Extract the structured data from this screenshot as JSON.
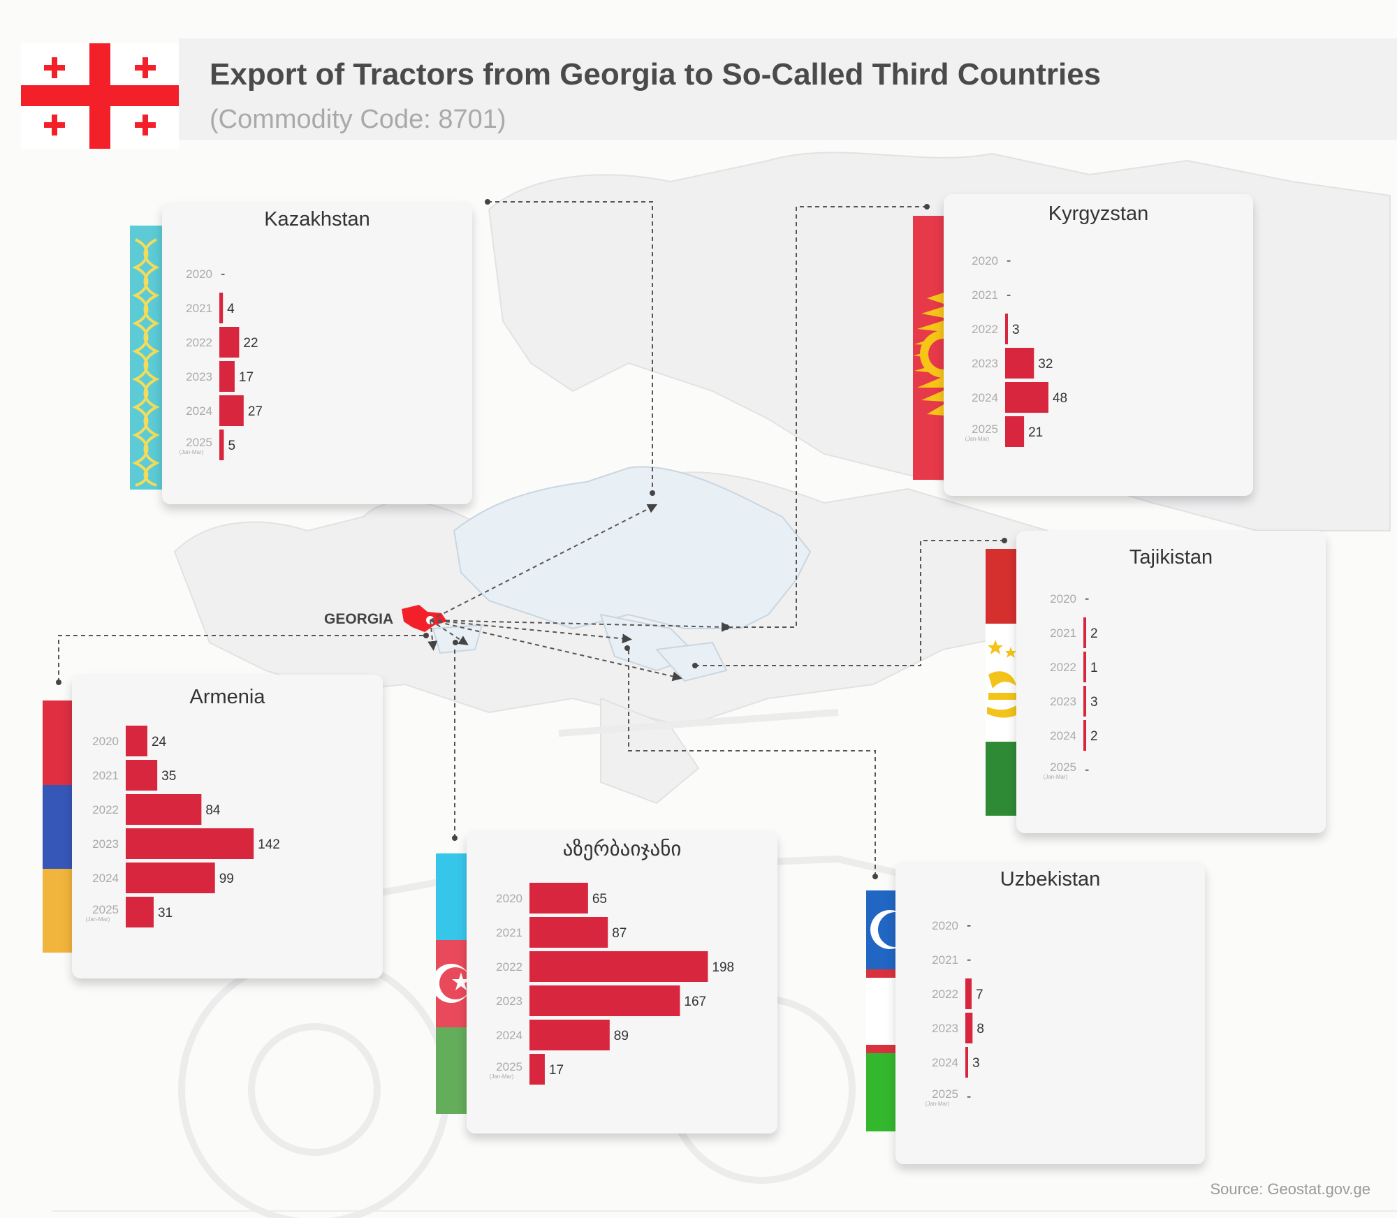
{
  "page": {
    "title": "Export of Tractors from Georgia to So-Called Third Countries",
    "subtitle": "(Commodity Code: 8701)",
    "source": "Source: Geostat.gov.ge",
    "origin_label": "GEORGIA"
  },
  "colors": {
    "bar": "#d7263d",
    "georgia_red": "#f3202a",
    "kazakh_blue": "#5ccbd6",
    "kazakh_gold": "#f3dc5a",
    "kyrgyz_red": "#e6394a",
    "kyrgyz_sun": "#f7c518",
    "tajik_red": "#d5302e",
    "tajik_green": "#2f8a35",
    "tajik_gold": "#f4c319",
    "armenia_red": "#df2f40",
    "armenia_blue": "#3757b8",
    "armenia_orange": "#f1b43c",
    "azer_blue": "#36c6ea",
    "azer_red": "#e94a5b",
    "azer_green": "#64ad5b",
    "uzbek_blue": "#2166c3",
    "uzbek_red": "#d9323e",
    "uzbek_green": "#33b72d"
  },
  "chart_data": [
    {
      "type": "bar",
      "title": "Kazakhstan",
      "orientation": "horizontal",
      "categories": [
        "2020",
        "2021",
        "2022",
        "2023",
        "2024",
        "2025"
      ],
      "values": [
        null,
        4,
        22,
        17,
        27,
        5
      ]
    },
    {
      "type": "bar",
      "title": "Kyrgyzstan",
      "orientation": "horizontal",
      "categories": [
        "2020",
        "2021",
        "2022",
        "2023",
        "2024",
        "2025"
      ],
      "values": [
        null,
        null,
        3,
        32,
        48,
        21
      ]
    },
    {
      "type": "bar",
      "title": "Tajikistan",
      "orientation": "horizontal",
      "categories": [
        "2020",
        "2021",
        "2022",
        "2023",
        "2024",
        "2025"
      ],
      "values": [
        null,
        2,
        1,
        3,
        2,
        null
      ]
    },
    {
      "type": "bar",
      "title": "Armenia",
      "orientation": "horizontal",
      "categories": [
        "2020",
        "2021",
        "2022",
        "2023",
        "2024",
        "2025"
      ],
      "values": [
        24,
        35,
        84,
        142,
        99,
        31
      ]
    },
    {
      "type": "bar",
      "title": "აზერბაიჯანი",
      "orientation": "horizontal",
      "categories": [
        "2020",
        "2021",
        "2022",
        "2023",
        "2024",
        "2025"
      ],
      "values": [
        65,
        87,
        198,
        167,
        89,
        17
      ]
    },
    {
      "type": "bar",
      "title": "Uzbekistan",
      "orientation": "horizontal",
      "categories": [
        "2020",
        "2021",
        "2022",
        "2023",
        "2024",
        "2025"
      ],
      "values": [
        null,
        null,
        7,
        8,
        3,
        null
      ]
    }
  ],
  "category_notes": {
    "2025": "(Jan-Mar)"
  },
  "missing_marker": "-"
}
